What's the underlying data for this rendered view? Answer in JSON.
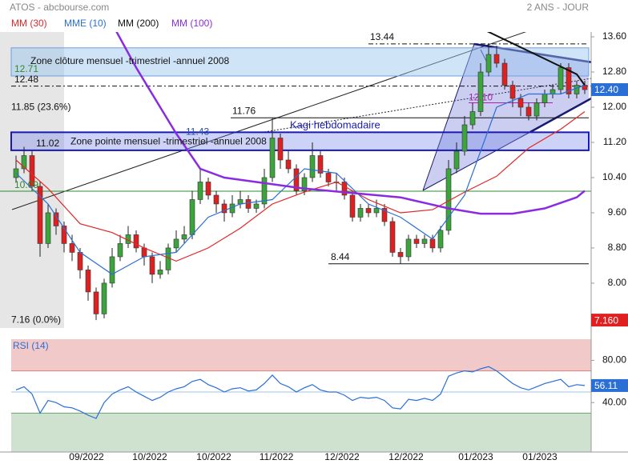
{
  "chart_data": [
    {
      "type": "candlestick",
      "title": "ATOS - abcbourse.com",
      "subtitle": "2 ANS - JOUR",
      "up_color": "#3aa53a",
      "down_color": "#e02020",
      "xlim": [
        -2,
        71.8
      ],
      "ylim": [
        6.98,
        13.71
      ],
      "yticks": [
        {
          "value": 13.6,
          "label": "13.60"
        },
        {
          "value": 12.8,
          "label": "12.80"
        },
        {
          "value": 12,
          "label": "12.00"
        },
        {
          "value": 11.2,
          "label": "11.20"
        },
        {
          "value": 10.4,
          "label": "10.40"
        },
        {
          "value": 9.6,
          "label": "9.60"
        },
        {
          "value": 8.8,
          "label": "8.80"
        },
        {
          "value": 8,
          "label": "8.00"
        }
      ],
      "candles": [
        [
          10.4,
          10.9,
          10.3,
          10.6
        ],
        [
          10.6,
          11.1,
          10.5,
          10.9
        ],
        [
          10.9,
          11.0,
          10.1,
          10.2
        ],
        [
          10.2,
          10.3,
          8.6,
          8.9
        ],
        [
          8.9,
          9.8,
          8.8,
          9.6
        ],
        [
          9.6,
          9.7,
          9.1,
          9.3
        ],
        [
          9.3,
          9.4,
          8.7,
          8.9
        ],
        [
          8.9,
          9.1,
          8.5,
          8.7
        ],
        [
          8.7,
          8.8,
          8.1,
          8.3
        ],
        [
          8.3,
          8.4,
          7.6,
          7.8
        ],
        [
          7.8,
          7.9,
          7.16,
          7.3
        ],
        [
          7.3,
          8.1,
          7.2,
          8.0
        ],
        [
          8.0,
          8.8,
          7.9,
          8.6
        ],
        [
          8.6,
          9.1,
          8.5,
          8.9
        ],
        [
          8.9,
          9.3,
          8.8,
          9.1
        ],
        [
          9.1,
          9.2,
          8.7,
          8.8
        ],
        [
          8.8,
          8.9,
          8.4,
          8.6
        ],
        [
          8.6,
          8.7,
          8.0,
          8.2
        ],
        [
          8.2,
          8.5,
          8.1,
          8.3
        ],
        [
          8.3,
          8.9,
          8.2,
          8.8
        ],
        [
          8.8,
          9.2,
          8.7,
          9.0
        ],
        [
          9.0,
          9.3,
          8.9,
          9.1
        ],
        [
          9.1,
          10.1,
          9.0,
          9.9
        ],
        [
          9.9,
          10.6,
          9.8,
          10.3
        ],
        [
          10.3,
          10.4,
          9.9,
          10.0
        ],
        [
          10.0,
          10.1,
          9.6,
          9.8
        ],
        [
          9.8,
          9.9,
          9.4,
          9.6
        ],
        [
          9.6,
          10.0,
          9.5,
          9.8
        ],
        [
          9.8,
          10.1,
          9.7,
          9.9
        ],
        [
          9.9,
          10.0,
          9.6,
          9.7
        ],
        [
          9.7,
          9.9,
          9.6,
          9.8
        ],
        [
          9.8,
          10.6,
          9.7,
          10.4
        ],
        [
          10.4,
          11.76,
          10.3,
          11.3
        ],
        [
          11.3,
          11.4,
          10.6,
          10.8
        ],
        [
          10.8,
          11.0,
          10.5,
          10.6
        ],
        [
          10.6,
          10.7,
          10.0,
          10.1
        ],
        [
          10.1,
          10.5,
          10.0,
          10.4
        ],
        [
          10.4,
          11.2,
          10.3,
          10.9
        ],
        [
          10.9,
          11.0,
          10.4,
          10.5
        ],
        [
          10.5,
          10.6,
          10.2,
          10.3
        ],
        [
          10.3,
          10.5,
          10.1,
          10.3
        ],
        [
          10.3,
          10.4,
          9.9,
          10.0
        ],
        [
          10.0,
          10.1,
          9.4,
          9.5
        ],
        [
          9.5,
          9.8,
          9.4,
          9.7
        ],
        [
          9.7,
          9.8,
          9.5,
          9.6
        ],
        [
          9.6,
          9.9,
          9.5,
          9.7
        ],
        [
          9.7,
          9.8,
          9.3,
          9.4
        ],
        [
          9.4,
          9.5,
          8.6,
          8.7
        ],
        [
          8.7,
          8.8,
          8.44,
          8.6
        ],
        [
          8.6,
          9.1,
          8.5,
          9.0
        ],
        [
          9.0,
          9.1,
          8.8,
          8.9
        ],
        [
          8.9,
          9.1,
          8.8,
          9.0
        ],
        [
          9.0,
          9.1,
          8.7,
          8.8
        ],
        [
          8.8,
          9.3,
          8.7,
          9.2
        ],
        [
          9.2,
          10.8,
          9.1,
          10.6
        ],
        [
          10.6,
          11.2,
          10.5,
          11.0
        ],
        [
          11.0,
          11.8,
          10.9,
          11.6
        ],
        [
          11.6,
          12.1,
          11.5,
          11.9
        ],
        [
          11.9,
          13.0,
          11.8,
          12.8
        ],
        [
          12.8,
          13.44,
          12.7,
          13.2
        ],
        [
          13.2,
          13.4,
          12.9,
          13.0
        ],
        [
          13.0,
          13.1,
          12.4,
          12.5
        ],
        [
          12.5,
          12.6,
          12.0,
          12.2
        ],
        [
          12.2,
          12.3,
          11.8,
          12.0
        ],
        [
          12.0,
          12.1,
          11.7,
          11.8
        ],
        [
          11.8,
          12.2,
          11.7,
          12.1
        ],
        [
          12.1,
          12.4,
          12.0,
          12.3
        ],
        [
          12.3,
          12.5,
          12.2,
          12.4
        ],
        [
          12.4,
          13.0,
          12.3,
          12.9
        ],
        [
          12.9,
          13.0,
          12.2,
          12.3
        ],
        [
          12.3,
          12.6,
          12.2,
          12.5
        ],
        [
          12.5,
          12.6,
          12.3,
          12.4
        ]
      ],
      "series": [
        {
          "name": "MM (30)",
          "color": "#e02828",
          "x": [
            0,
            4,
            8,
            12,
            16,
            20,
            24,
            28,
            32,
            36,
            40,
            44,
            48,
            52,
            56,
            60,
            64,
            68,
            71
          ],
          "values": [
            10.8,
            10.15,
            9.35,
            9.15,
            8.8,
            8.5,
            8.8,
            9.25,
            9.8,
            10.07,
            10.3,
            9.9,
            9.6,
            9.67,
            10.07,
            10.43,
            11.07,
            11.5,
            11.9
          ]
        },
        {
          "name": "MME (10)",
          "color": "#2a6fd6",
          "x": [
            0,
            4,
            8,
            12,
            16,
            20,
            24,
            28,
            32,
            36,
            40,
            44,
            48,
            52,
            56,
            60,
            64,
            68,
            71
          ],
          "values": [
            10.5,
            9.8,
            8.7,
            8.2,
            8.6,
            8.7,
            9.5,
            9.8,
            9.9,
            10.6,
            10.5,
            9.8,
            9.5,
            9.0,
            10.0,
            12.0,
            12.3,
            12.3,
            12.5
          ]
        },
        {
          "name": "MM (200)",
          "color": "#111111",
          "x": [
            54,
            58,
            62,
            66,
            70,
            71
          ],
          "values": [
            14.0,
            13.8,
            13.45,
            13.1,
            12.75,
            12.5
          ]
        },
        {
          "name": "MM (100)",
          "color": "#8a2be2",
          "x": [
            12,
            15,
            18,
            20,
            23,
            26,
            30,
            36,
            42,
            48,
            54,
            58,
            62,
            66,
            70,
            71
          ],
          "values": [
            13.9,
            12.9,
            12.0,
            11.4,
            10.6,
            10.4,
            10.3,
            10.15,
            10.05,
            9.95,
            9.7,
            9.58,
            9.58,
            9.7,
            9.95,
            10.1
          ]
        }
      ],
      "levels": [
        {
          "value": 13.44,
          "label": "13.44"
        },
        {
          "value": 12.71,
          "label": "12.71"
        },
        {
          "value": 12.48,
          "label": "12.48"
        },
        {
          "value": 11.85,
          "label": "11.85  (23.6%)"
        },
        {
          "value": 11.76,
          "label": "11.76"
        },
        {
          "value": 11.43,
          "label": "11.43"
        },
        {
          "value": 11.02,
          "label": "11.02"
        },
        {
          "value": 10.09,
          "label": "10.09"
        },
        {
          "value": 8.44,
          "label": "8.44"
        },
        {
          "value": 7.16,
          "label": "7.16  (0.0%)"
        },
        {
          "value": 12.1,
          "label": "12.10"
        }
      ],
      "zones": [
        {
          "label": "Zone clôture mensuel -trimestriel -annuel 2008",
          "low": 12.71,
          "high": 13.35
        },
        {
          "label": "Zone pointe mensuel -trimestriel -annuel 2008",
          "low": 11.02,
          "high": 11.43
        }
      ],
      "annotation": "Kagi hebdomadaire",
      "last_labels": [
        {
          "value": 12.4,
          "label": "12.40",
          "color": "#2a6fd6"
        },
        {
          "value": 7.16,
          "label": "7.160",
          "color": "#e02020"
        }
      ]
    },
    {
      "type": "line",
      "title": "RSI (14)",
      "color": "#2a6fd6",
      "xlim": [
        -2,
        71.8
      ],
      "ylim": [
        0,
        100
      ],
      "yticks": [
        {
          "value": 80,
          "label": "80.00"
        },
        {
          "value": 40,
          "label": "40.00"
        }
      ],
      "bands": [
        {
          "low": 70,
          "high": 100,
          "color": "#f2c9c9"
        },
        {
          "low": 0,
          "high": 30,
          "color": "#cfe2cf"
        }
      ],
      "ref_lines": [
        50
      ],
      "values": [
        52,
        55,
        48,
        30,
        42,
        40,
        36,
        35,
        32,
        28,
        25,
        40,
        48,
        52,
        55,
        50,
        46,
        42,
        45,
        50,
        53,
        55,
        60,
        62,
        57,
        54,
        50,
        53,
        54,
        51,
        52,
        58,
        66,
        58,
        55,
        50,
        54,
        57,
        52,
        50,
        50,
        47,
        42,
        45,
        44,
        45,
        42,
        35,
        34,
        43,
        42,
        44,
        42,
        48,
        65,
        68,
        70,
        69,
        72,
        74,
        70,
        64,
        58,
        54,
        52,
        55,
        58,
        60,
        62,
        55,
        57,
        56.11
      ],
      "xticks": [
        {
          "value": 8.8,
          "label": "09/2022"
        },
        {
          "value": 16.7,
          "label": "10/2022"
        },
        {
          "value": 24.7,
          "label": "10/2022"
        },
        {
          "value": 32.5,
          "label": "11/2022"
        },
        {
          "value": 40.7,
          "label": "12/2022"
        },
        {
          "value": 48.7,
          "label": "12/2022"
        },
        {
          "value": 57.4,
          "label": "01/2023"
        },
        {
          "value": 65.4,
          "label": "01/2023"
        }
      ]
    }
  ]
}
